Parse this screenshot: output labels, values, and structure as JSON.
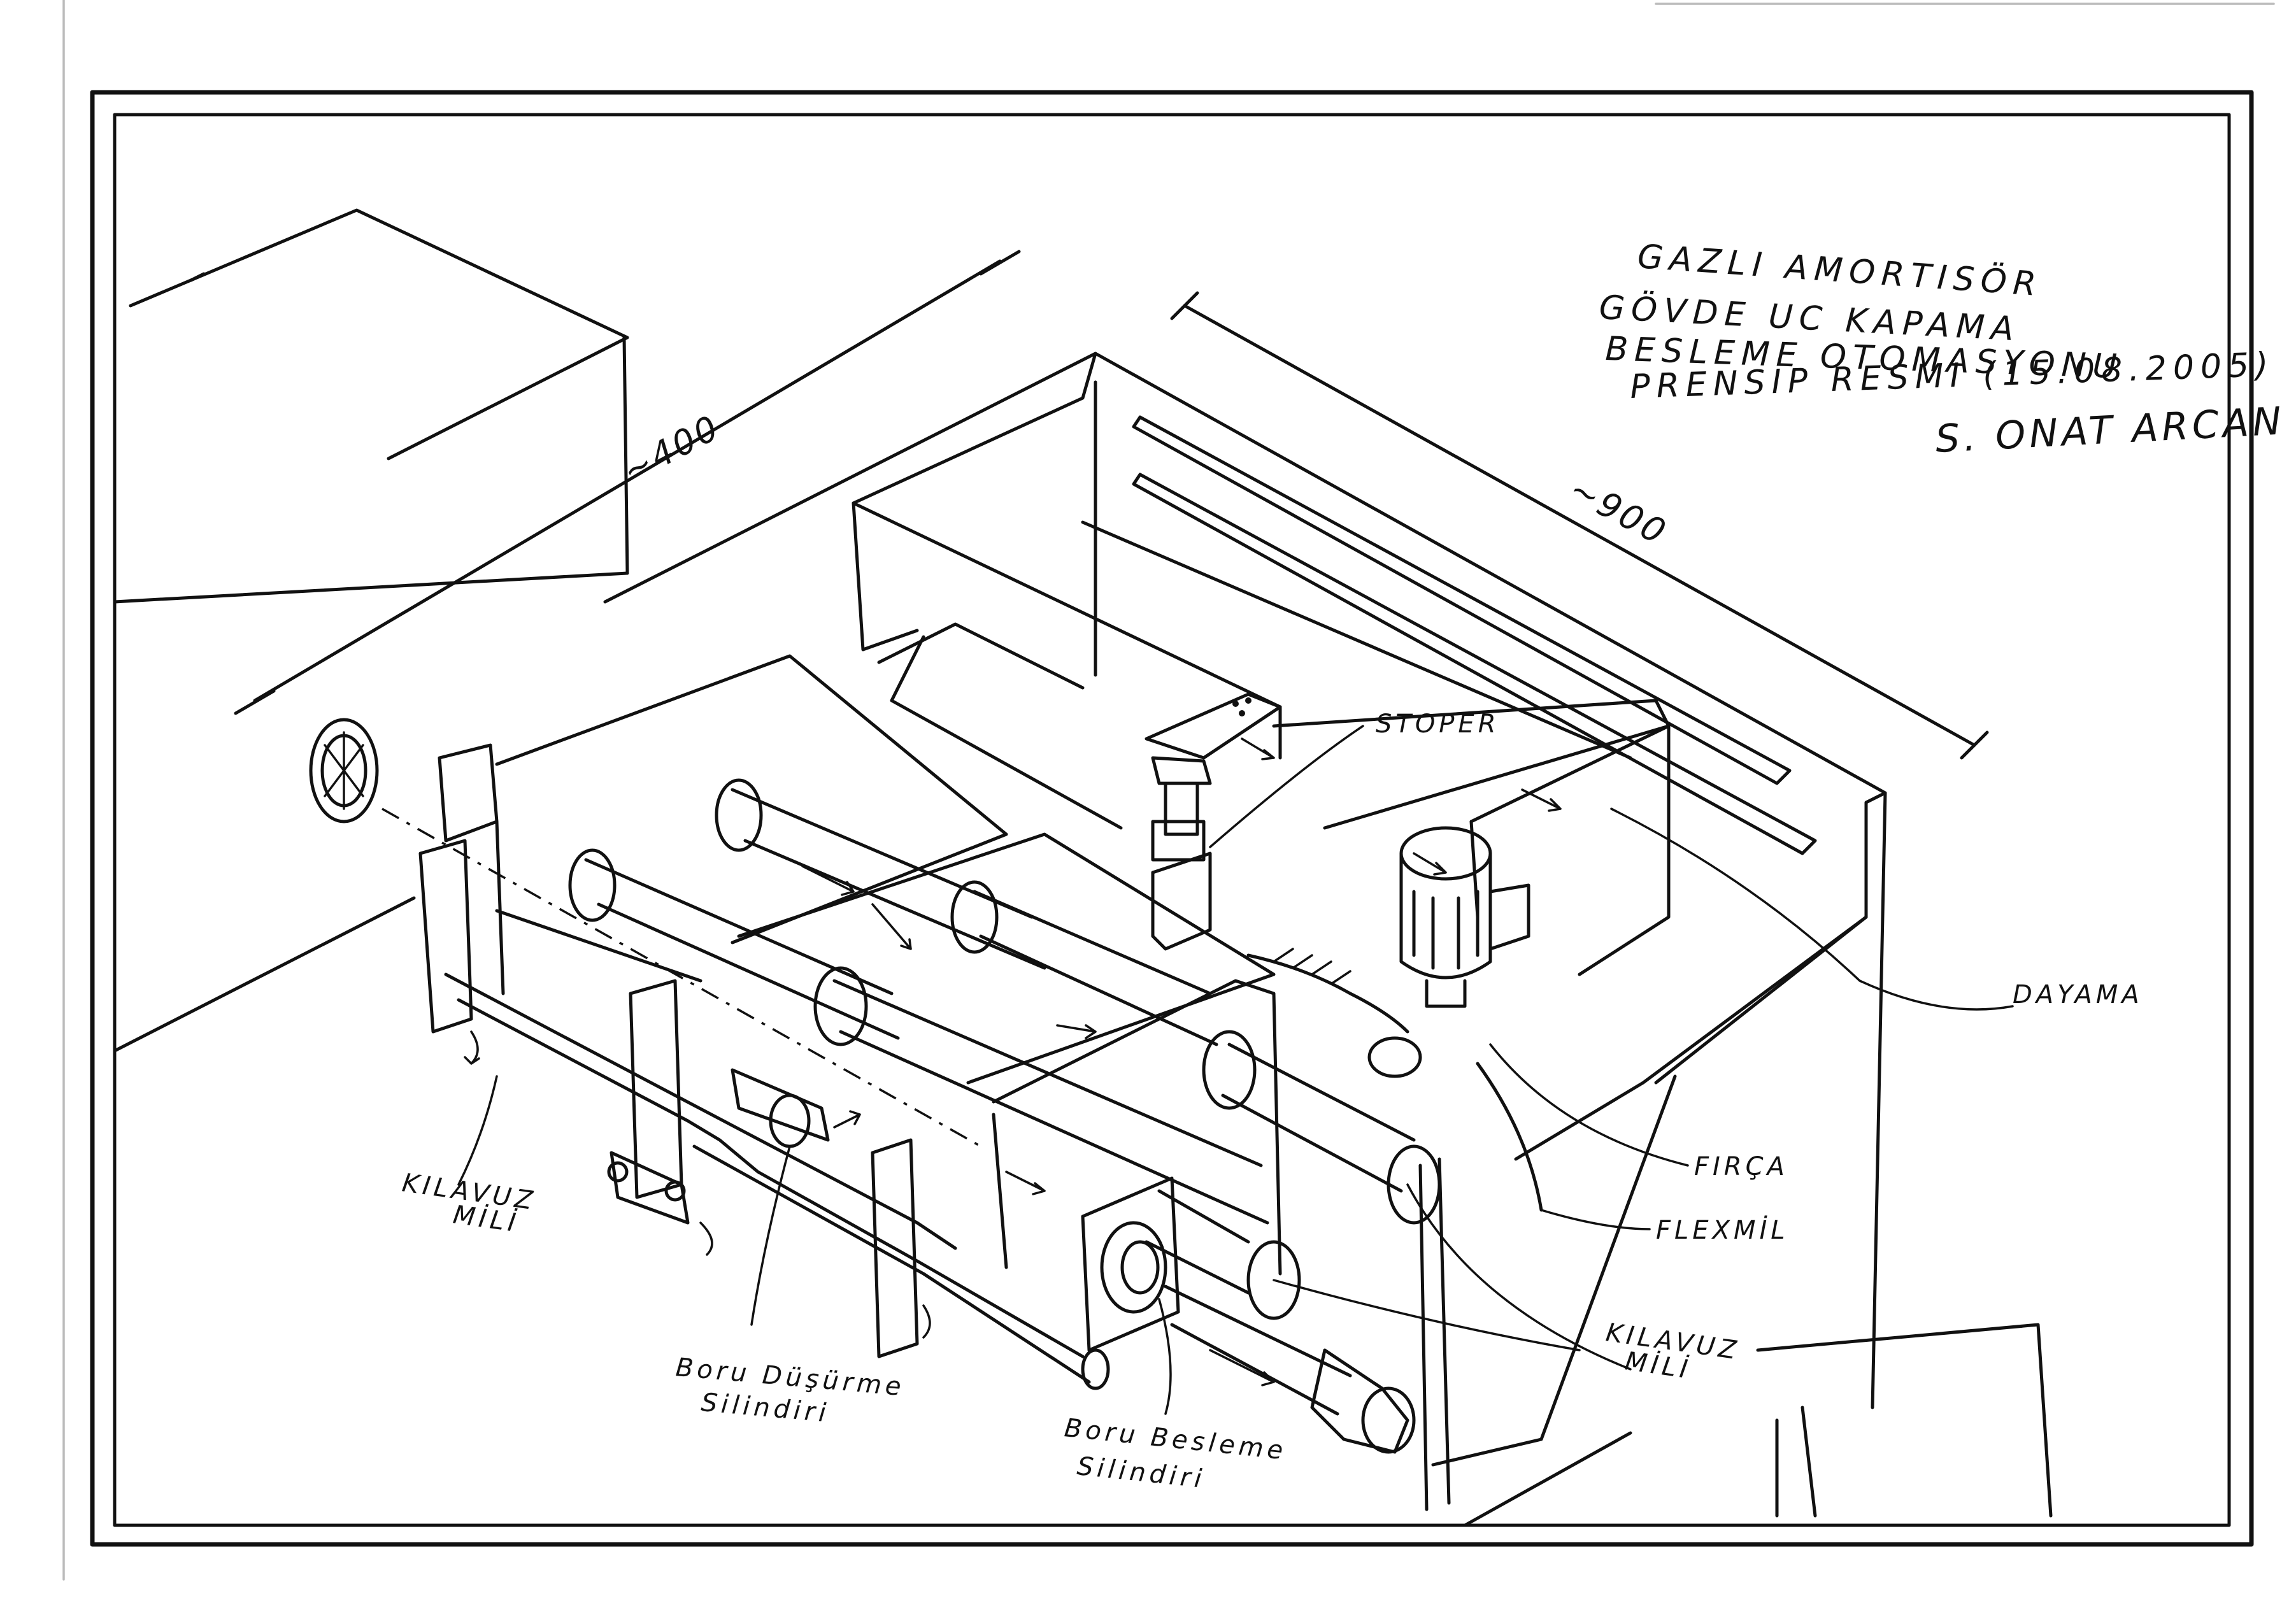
{
  "title_block": {
    "line1": "GAZLI AMORTISÖR",
    "line2": "GÖVDE UC KAPAMA",
    "line3": "BESLEME OTOMASYONU",
    "line4": "PRENSIP RESMI (15.08.2005)",
    "author": "S. ONAT ARCAN"
  },
  "dimensions": {
    "width": "~400",
    "length": "~900"
  },
  "labels": {
    "stoper": "STOPER",
    "dayama": "DAYAMA",
    "firca": "FIRÇA",
    "flexmil": "FLEXMİL",
    "kilavuz_mili_left_1": "KILAVUZ",
    "kilavuz_mili_left_2": "MİLİ",
    "kilavuz_mili_right_1": "KILAVUZ",
    "kilavuz_mili_right_2": "MİLİ",
    "boru_dusurme_1": "Boru Düşürme",
    "boru_dusurme_2": "Silindiri",
    "boru_besleme_1": "Boru Besleme",
    "boru_besleme_2": "Silindiri"
  }
}
